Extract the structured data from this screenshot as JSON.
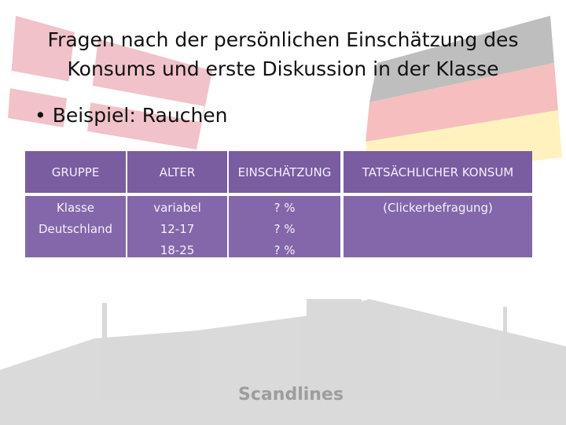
{
  "title": [
    "Fragen nach der persönlichen Einschätzung des",
    "Konsums und erste Diskussion in der Klasse"
  ],
  "bullet": "Beispiel: Rauchen",
  "table": {
    "header": [
      "GRUPPE",
      "ALTER",
      "EINSCHÄTZUNG",
      "TATSÄCHLICHER KONSUM"
    ],
    "rows": [
      [
        [
          "Klasse",
          "Deutschland"
        ],
        [
          "variabel",
          "12-17",
          "18-25"
        ],
        [
          "? %",
          "? %",
          "? %"
        ],
        [
          "(Clickerbefragung)"
        ]
      ]
    ]
  },
  "background": {
    "ship_label": "Scandlines"
  }
}
